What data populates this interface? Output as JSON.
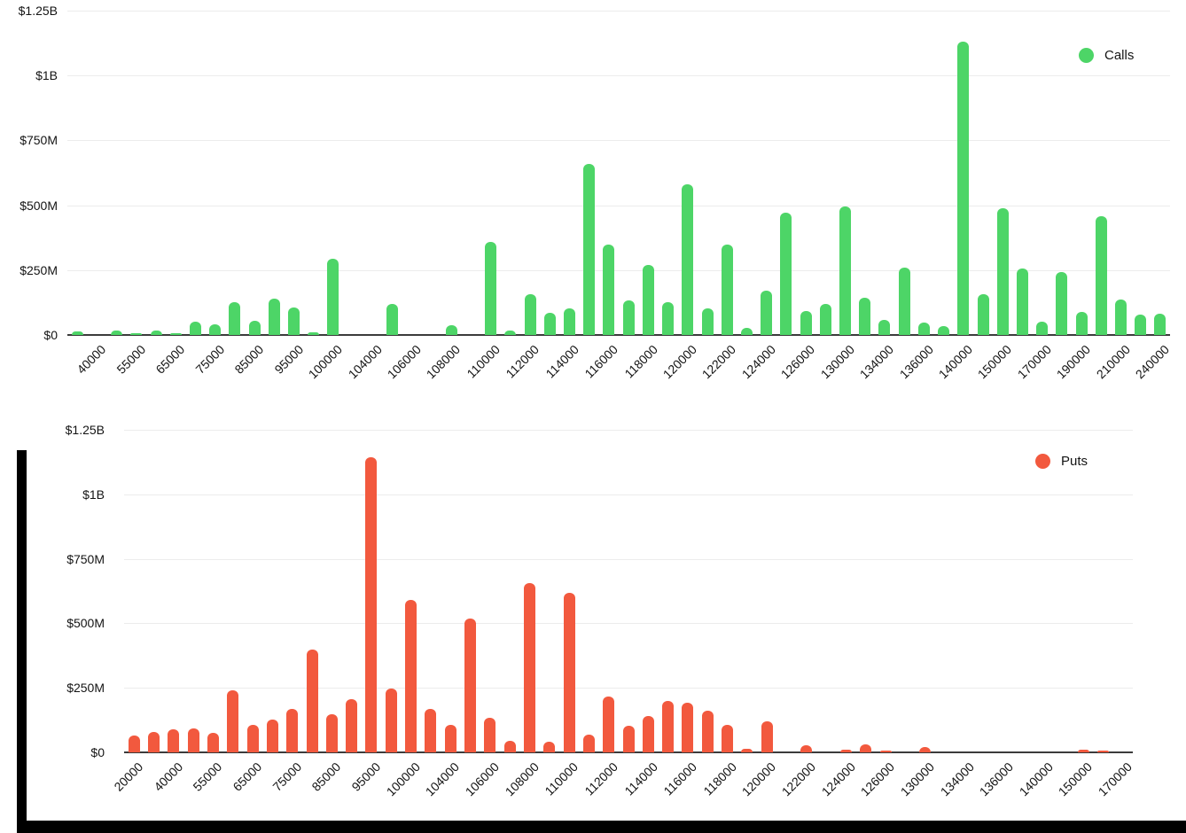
{
  "page": {
    "background": "#ffffff",
    "frame_color": "#000000",
    "grid_color": "#ececec",
    "axis_color": "#3b3b3b",
    "text_color": "#141414"
  },
  "chart_data": [
    {
      "type": "bar",
      "title": "",
      "xlabel": "",
      "ylabel": "",
      "grid": true,
      "legend": {
        "label": "Calls",
        "position": "top-right"
      },
      "series": [
        {
          "name": "Calls",
          "color": "#4dd567"
        }
      ],
      "ylim_millions": [
        0,
        1250
      ],
      "ytick_labels": [
        "$1.25B",
        "$1B",
        "$750M",
        "$500M",
        "$250M",
        "$0"
      ],
      "categories": [
        "",
        "40000",
        "",
        "55000",
        "",
        "65000",
        "",
        "75000",
        "",
        "85000",
        "",
        "95000",
        "",
        "100000",
        "",
        "104000",
        "",
        "106000",
        "",
        "108000",
        "",
        "110000",
        "",
        "112000",
        "",
        "114000",
        "",
        "116000",
        "",
        "118000",
        "",
        "120000",
        "",
        "122000",
        "",
        "124000",
        "",
        "126000",
        "",
        "130000",
        "",
        "134000",
        "",
        "136000",
        "",
        "140000",
        "",
        "150000",
        "",
        "170000",
        "",
        "190000",
        "",
        "210000",
        "",
        "240000"
      ],
      "values_millions": [
        15,
        0,
        17,
        6,
        17,
        6,
        52,
        40,
        127,
        55,
        140,
        107,
        9,
        293,
        0,
        0,
        120,
        0,
        0,
        38,
        0,
        360,
        17,
        157,
        85,
        103,
        660,
        349,
        133,
        270,
        127,
        580,
        103,
        349,
        27,
        170,
        470,
        93,
        120,
        495,
        143,
        58,
        260,
        48,
        34,
        1130,
        157,
        488,
        256,
        51,
        242,
        89,
        458,
        137,
        79,
        82
      ]
    },
    {
      "type": "bar",
      "title": "",
      "xlabel": "",
      "ylabel": "",
      "grid": true,
      "legend": {
        "label": "Puts",
        "position": "top-right"
      },
      "series": [
        {
          "name": "Puts",
          "color": "#f2593e"
        }
      ],
      "ylim_millions": [
        0,
        1250
      ],
      "ytick_labels": [
        "$1.25B",
        "$1B",
        "$750M",
        "$500M",
        "$250M",
        "$0"
      ],
      "categories": [
        "20000",
        "",
        "40000",
        "",
        "55000",
        "",
        "65000",
        "",
        "75000",
        "",
        "85000",
        "",
        "95000",
        "",
        "100000",
        "",
        "104000",
        "",
        "106000",
        "",
        "108000",
        "",
        "110000",
        "",
        "112000",
        "",
        "114000",
        "",
        "116000",
        "",
        "118000",
        "",
        "120000",
        "",
        "122000",
        "",
        "124000",
        "",
        "126000",
        "",
        "130000",
        "",
        "134000",
        "",
        "136000",
        "",
        "140000",
        "",
        "150000",
        "",
        "170000"
      ],
      "values_millions": [
        65,
        79,
        88,
        92,
        76,
        240,
        108,
        127,
        168,
        400,
        147,
        205,
        1145,
        248,
        592,
        168,
        106,
        520,
        133,
        44,
        655,
        41,
        620,
        68,
        215,
        102,
        140,
        198,
        191,
        160,
        106,
        14,
        120,
        0,
        28,
        0,
        9,
        30,
        7,
        0,
        20,
        0,
        0,
        0,
        0,
        0,
        0,
        0,
        9,
        7,
        0
      ]
    }
  ]
}
